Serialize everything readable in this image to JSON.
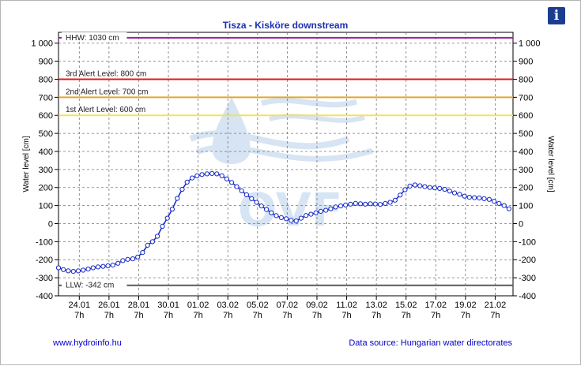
{
  "footer": {
    "site": "www.hydroinfo.hu",
    "source": "Data source: Hungarian water directorates"
  },
  "info_icon": "info-icon",
  "chart_data": {
    "type": "line",
    "title": "Tisza - Kisköre downstream",
    "ylabel_left": "Water level [cm]",
    "ylabel_right": "Water level [cm]",
    "ylim": [
      -400,
      1100
    ],
    "ylim_visible": [
      -400,
      1060
    ],
    "y_ticks": [
      -400,
      -300,
      -200,
      -100,
      0,
      100,
      200,
      300,
      400,
      500,
      600,
      700,
      800,
      900,
      1000
    ],
    "y_tick_labels": [
      "-400",
      "-300",
      "-200",
      "-100",
      "0",
      "100",
      "200",
      "300",
      "400",
      "500",
      "600",
      "700",
      "800",
      "900",
      "1 000"
    ],
    "x_range_days": [
      0,
      30.6
    ],
    "x_ticks": [
      {
        "day": 1.4,
        "date": "24.01",
        "hour": "7h"
      },
      {
        "day": 3.4,
        "date": "26.01",
        "hour": "7h"
      },
      {
        "day": 5.4,
        "date": "28.01",
        "hour": "7h"
      },
      {
        "day": 7.4,
        "date": "30.01",
        "hour": "7h"
      },
      {
        "day": 9.4,
        "date": "01.02",
        "hour": "7h"
      },
      {
        "day": 11.4,
        "date": "03.02",
        "hour": "7h"
      },
      {
        "day": 13.4,
        "date": "05.02",
        "hour": "7h"
      },
      {
        "day": 15.4,
        "date": "07.02",
        "hour": "7h"
      },
      {
        "day": 17.4,
        "date": "09.02",
        "hour": "7h"
      },
      {
        "day": 19.4,
        "date": "11.02",
        "hour": "7h"
      },
      {
        "day": 21.4,
        "date": "13.02",
        "hour": "7h"
      },
      {
        "day": 23.4,
        "date": "15.02",
        "hour": "7h"
      },
      {
        "day": 25.4,
        "date": "17.02",
        "hour": "7h"
      },
      {
        "day": 27.4,
        "date": "19.02",
        "hour": "7h"
      },
      {
        "day": 29.4,
        "date": "21.02",
        "hour": "7h"
      }
    ],
    "grid": true,
    "thresholds": [
      {
        "label": "HHW: 1030 cm",
        "value": 1030,
        "color": "#9b1f9b",
        "boxed": true
      },
      {
        "label": "3rd Alert Level: 800 cm",
        "value": 800,
        "color": "#dd1c1c",
        "boxed": false
      },
      {
        "label": "2nd Alert Level: 700 cm",
        "value": 700,
        "color": "#e3a72f",
        "boxed": false
      },
      {
        "label": "1st Alert Level: 600 cm",
        "value": 600,
        "color": "#f2e25a",
        "boxed": false
      },
      {
        "label": "LLW: -342 cm",
        "value": -342,
        "color": "#5a5a5a",
        "boxed": true
      }
    ],
    "series": [
      {
        "color": "#1428c8",
        "points": [
          [
            0.0,
            -245
          ],
          [
            0.33,
            -255
          ],
          [
            0.66,
            -262
          ],
          [
            1.0,
            -265
          ],
          [
            1.33,
            -262
          ],
          [
            1.66,
            -258
          ],
          [
            2.0,
            -252
          ],
          [
            2.33,
            -245
          ],
          [
            2.66,
            -240
          ],
          [
            3.0,
            -237
          ],
          [
            3.33,
            -234
          ],
          [
            3.66,
            -230
          ],
          [
            4.0,
            -220
          ],
          [
            4.33,
            -205
          ],
          [
            4.66,
            -198
          ],
          [
            5.0,
            -195
          ],
          [
            5.33,
            -185
          ],
          [
            5.66,
            -160
          ],
          [
            6.0,
            -120
          ],
          [
            6.33,
            -100
          ],
          [
            6.66,
            -70
          ],
          [
            7.0,
            -15
          ],
          [
            7.33,
            30
          ],
          [
            7.66,
            80
          ],
          [
            8.0,
            140
          ],
          [
            8.33,
            190
          ],
          [
            8.66,
            230
          ],
          [
            9.0,
            253
          ],
          [
            9.33,
            265
          ],
          [
            9.66,
            272
          ],
          [
            10.0,
            276
          ],
          [
            10.33,
            278
          ],
          [
            10.66,
            276
          ],
          [
            11.0,
            265
          ],
          [
            11.33,
            248
          ],
          [
            11.66,
            228
          ],
          [
            12.0,
            205
          ],
          [
            12.33,
            182
          ],
          [
            12.66,
            160
          ],
          [
            13.0,
            138
          ],
          [
            13.33,
            118
          ],
          [
            13.66,
            98
          ],
          [
            14.0,
            78
          ],
          [
            14.33,
            60
          ],
          [
            14.66,
            44
          ],
          [
            15.0,
            33
          ],
          [
            15.33,
            27
          ],
          [
            15.66,
            18
          ],
          [
            16.0,
            15
          ],
          [
            16.33,
            30
          ],
          [
            16.66,
            45
          ],
          [
            17.0,
            52
          ],
          [
            17.33,
            60
          ],
          [
            17.66,
            68
          ],
          [
            18.0,
            74
          ],
          [
            18.33,
            82
          ],
          [
            18.66,
            92
          ],
          [
            19.0,
            98
          ],
          [
            19.33,
            103
          ],
          [
            19.66,
            108
          ],
          [
            20.0,
            112
          ],
          [
            20.33,
            110
          ],
          [
            20.66,
            108
          ],
          [
            21.0,
            110
          ],
          [
            21.33,
            109
          ],
          [
            21.66,
            106
          ],
          [
            22.0,
            112
          ],
          [
            22.33,
            118
          ],
          [
            22.66,
            130
          ],
          [
            23.0,
            158
          ],
          [
            23.33,
            188
          ],
          [
            23.66,
            208
          ],
          [
            24.0,
            214
          ],
          [
            24.33,
            210
          ],
          [
            24.66,
            205
          ],
          [
            25.0,
            200
          ],
          [
            25.33,
            198
          ],
          [
            25.66,
            195
          ],
          [
            26.0,
            190
          ],
          [
            26.33,
            180
          ],
          [
            26.66,
            170
          ],
          [
            27.0,
            162
          ],
          [
            27.33,
            152
          ],
          [
            27.66,
            146
          ],
          [
            28.0,
            144
          ],
          [
            28.33,
            142
          ],
          [
            28.66,
            138
          ],
          [
            29.0,
            134
          ],
          [
            29.33,
            124
          ],
          [
            29.66,
            112
          ],
          [
            30.0,
            100
          ],
          [
            30.33,
            82
          ]
        ]
      }
    ]
  }
}
